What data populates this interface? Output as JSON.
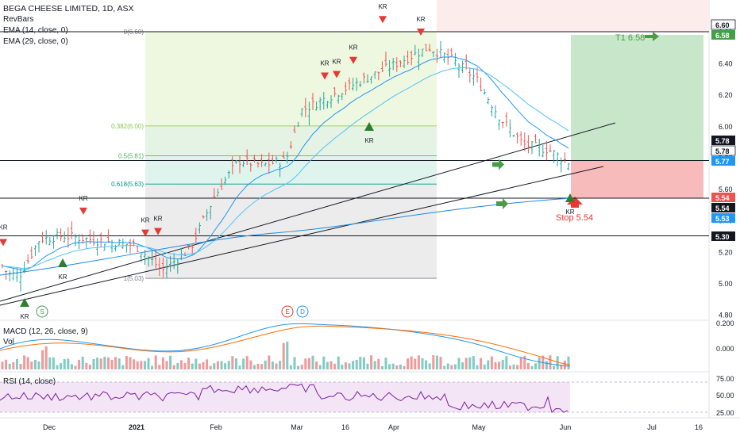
{
  "legend": {
    "symbol": "BEGA CHEESE LIMITED, 1D, ASX",
    "indicator1": "RevBars",
    "indicator2": "EMA (14, close, 0)",
    "indicator3": "EMA (29, close, 0)"
  },
  "macd_label": "MACD (12, 26, close, 9)",
  "vol_label": "Vol",
  "rsi_label": "RSI (14, close)",
  "chart_data": {
    "type": "candlestick",
    "price_axis": {
      "ticks": [
        "6.60",
        "6.40",
        "6.20",
        "6.00",
        "5.80",
        "5.60",
        "5.40",
        "5.20",
        "5.00",
        "4.80"
      ],
      "ylim": [
        4.77,
        6.74
      ]
    },
    "time_axis": {
      "ticks": [
        "Dec",
        "2021",
        "Feb",
        "Mar",
        "16",
        "Apr",
        "May",
        "Jun",
        "Jul",
        "16"
      ]
    },
    "price_tags": [
      {
        "text": "6.60",
        "style": "black-outline"
      },
      {
        "text": "6.58",
        "style": "green"
      },
      {
        "text": "5.78",
        "style": "black"
      },
      {
        "text": "5.78",
        "style": "black-outline"
      },
      {
        "text": "5.77",
        "style": "blue"
      },
      {
        "text": "5.54",
        "style": "red"
      },
      {
        "text": "5.54",
        "style": "black"
      },
      {
        "text": "5.53",
        "style": "blue"
      },
      {
        "text": "5.30",
        "style": "black"
      }
    ],
    "fibonacci": [
      {
        "label": "0(6.60)",
        "price": 6.6
      },
      {
        "label": "0.382(6.00)",
        "price": 6.0
      },
      {
        "label": "0.5(5.81)",
        "price": 5.81
      },
      {
        "label": "0.618(5.63)",
        "price": 5.63
      },
      {
        "label": "1(5.03)",
        "price": 5.03
      }
    ],
    "horizontal_lines": [
      6.6,
      5.78,
      5.54,
      5.3
    ],
    "position": {
      "target_label": "T1 6.58",
      "stop_label": "Stop 5.54",
      "entry": 5.78,
      "target": 6.58,
      "stop": 5.54
    },
    "markers": {
      "sell_label": "KR",
      "buy_label": "KR",
      "events": [
        "S",
        "E",
        "D"
      ]
    },
    "macd_axis": [
      "0.200",
      "0.000"
    ],
    "rsi_axis": [
      "75.00",
      "50.00",
      "25.00"
    ],
    "colors": {
      "up_bar": "#26a69a",
      "down_bar": "#ef5350",
      "ema_fast": "#2196f3",
      "ema_slow": "#4fc3f7",
      "macd": "#2196f3",
      "signal": "#ff6d00",
      "rsi": "#7b1fa2"
    }
  }
}
